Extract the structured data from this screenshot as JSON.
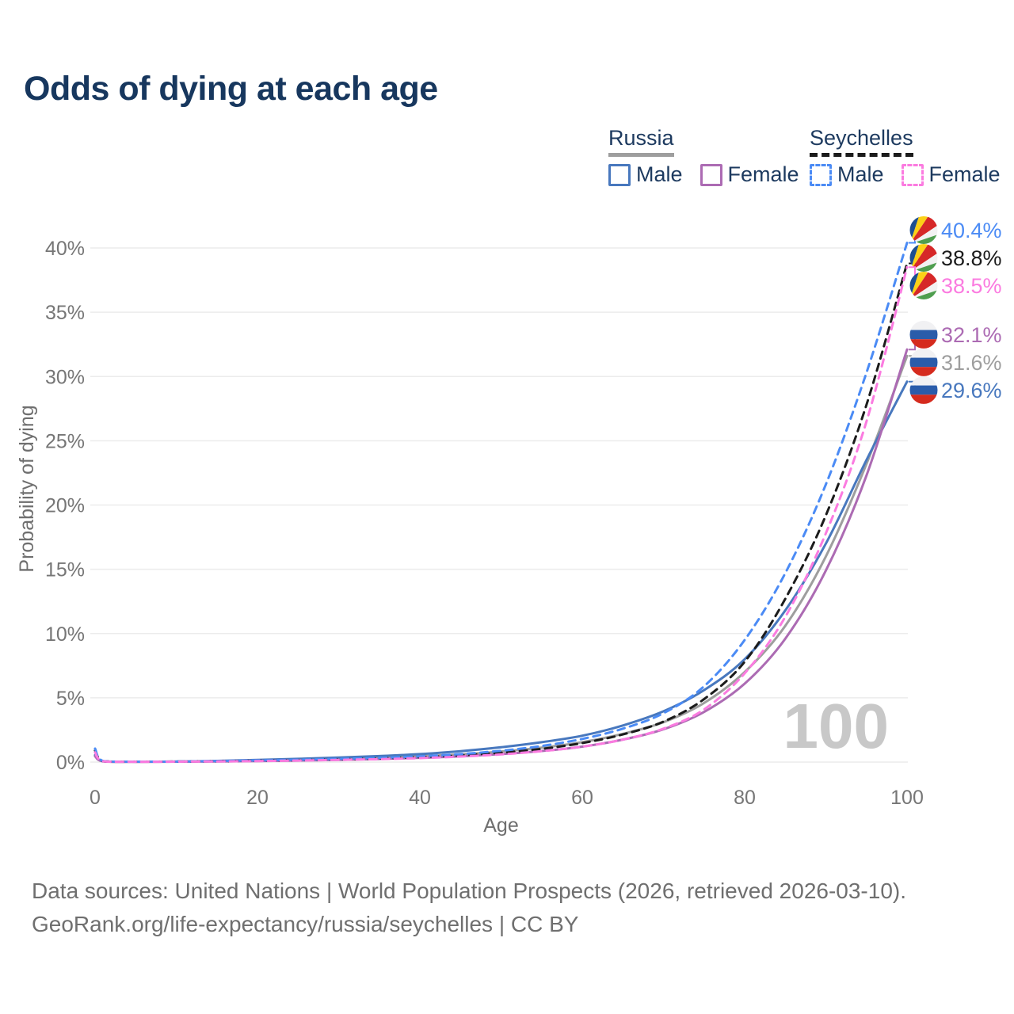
{
  "title": "Odds of dying at each age",
  "legend": {
    "groups": [
      {
        "country": "Russia",
        "line_style": "solid",
        "underline_color": "#9e9e9e",
        "items": [
          {
            "label": "Male",
            "color": "#4878be",
            "dashed": false
          },
          {
            "label": "Female",
            "color": "#ac6bb3",
            "dashed": false
          }
        ]
      },
      {
        "country": "Seychelles",
        "line_style": "dashed",
        "underline_color": "#1c1c1c",
        "items": [
          {
            "label": "Male",
            "color": "#4b8bf5",
            "dashed": true
          },
          {
            "label": "Female",
            "color": "#fb7be0",
            "dashed": true
          }
        ]
      }
    ]
  },
  "chart_data": {
    "type": "line",
    "title": "Odds of dying at each age",
    "xlabel": "Age",
    "ylabel": "Probability of dying",
    "xlim": [
      0,
      100
    ],
    "ylim": [
      0,
      40
    ],
    "x_ticks": [
      0,
      20,
      40,
      60,
      80,
      100
    ],
    "y_ticks": [
      {
        "value": 0,
        "label": "0%"
      },
      {
        "value": 5,
        "label": "5%"
      },
      {
        "value": 10,
        "label": "10%"
      },
      {
        "value": 15,
        "label": "15%"
      },
      {
        "value": 20,
        "label": "20%"
      },
      {
        "value": 25,
        "label": "25%"
      },
      {
        "value": 30,
        "label": "30%"
      },
      {
        "value": 35,
        "label": "35%"
      },
      {
        "value": 40,
        "label": "40%"
      }
    ],
    "grid": "horizontal",
    "watermark": "100",
    "ages": [
      0,
      1,
      5,
      10,
      15,
      20,
      25,
      30,
      35,
      40,
      45,
      50,
      55,
      60,
      65,
      70,
      75,
      80,
      85,
      90,
      95,
      100
    ],
    "series": [
      {
        "name": "Russia Total",
        "country": "Russia",
        "sex": "total",
        "flag": "russia",
        "color": "#9e9e9e",
        "dashed": false,
        "end_label": "31.6%",
        "values": [
          0.5,
          0.06,
          0.025,
          0.035,
          0.07,
          0.12,
          0.18,
          0.25,
          0.34,
          0.45,
          0.6,
          0.82,
          1.12,
          1.55,
          2.2,
          3.1,
          4.6,
          7.0,
          10.6,
          16.0,
          23.2,
          31.6
        ]
      },
      {
        "name": "Russia Male",
        "country": "Russia",
        "sex": "male",
        "flag": "russia",
        "color": "#4878be",
        "dashed": false,
        "end_label": "29.6%",
        "values": [
          0.55,
          0.07,
          0.03,
          0.04,
          0.09,
          0.17,
          0.25,
          0.35,
          0.47,
          0.62,
          0.85,
          1.15,
          1.55,
          2.05,
          2.85,
          3.95,
          5.6,
          8.0,
          11.8,
          17.0,
          23.5,
          29.6
        ]
      },
      {
        "name": "Russia Female",
        "country": "Russia",
        "sex": "female",
        "flag": "russia",
        "color": "#ac6bb3",
        "dashed": false,
        "end_label": "32.1%",
        "values": [
          0.45,
          0.05,
          0.02,
          0.03,
          0.05,
          0.08,
          0.12,
          0.17,
          0.24,
          0.33,
          0.45,
          0.62,
          0.86,
          1.2,
          1.75,
          2.55,
          3.9,
          6.1,
          9.6,
          14.9,
          22.3,
          32.1
        ]
      },
      {
        "name": "Seychelles Total",
        "country": "Seychelles",
        "sex": "total",
        "flag": "seychelles",
        "color": "#1c1c1c",
        "dashed": true,
        "end_label": "38.8%",
        "values": [
          0.9,
          0.07,
          0.03,
          0.035,
          0.07,
          0.11,
          0.15,
          0.21,
          0.28,
          0.38,
          0.52,
          0.73,
          1.03,
          1.48,
          2.15,
          3.15,
          4.9,
          7.8,
          12.7,
          19.2,
          27.8,
          38.8
        ]
      },
      {
        "name": "Seychelles Male",
        "country": "Seychelles",
        "sex": "male",
        "flag": "seychelles",
        "color": "#4b8bf5",
        "dashed": true,
        "end_label": "40.4%",
        "values": [
          1.05,
          0.08,
          0.03,
          0.04,
          0.08,
          0.13,
          0.18,
          0.25,
          0.33,
          0.45,
          0.62,
          0.88,
          1.25,
          1.8,
          2.6,
          3.8,
          5.9,
          9.5,
          14.7,
          21.6,
          30.3,
          40.4
        ]
      },
      {
        "name": "Seychelles Female",
        "country": "Seychelles",
        "sex": "female",
        "flag": "seychelles",
        "color": "#fb7be0",
        "dashed": true,
        "end_label": "38.5%",
        "values": [
          0.75,
          0.06,
          0.025,
          0.03,
          0.05,
          0.08,
          0.12,
          0.17,
          0.23,
          0.31,
          0.43,
          0.6,
          0.85,
          1.2,
          1.75,
          2.6,
          4.1,
          6.9,
          11.3,
          17.8,
          26.5,
          38.5
        ]
      }
    ],
    "flag_colors": {
      "russia": {
        "white": "#f1f1f3",
        "blue": "#2a5caa",
        "red": "#d52b1e"
      },
      "seychelles": {
        "blue": "#1d4f91",
        "yellow": "#fcd116",
        "red": "#d62828",
        "white": "#f2f2f2",
        "green": "#4f9e4f"
      }
    },
    "colors": {
      "grid": "#ececec",
      "tick_text": "#767676",
      "axis_label": "#6f6f6f",
      "watermark": "#c8c8c8"
    }
  },
  "footer": {
    "line1": "Data sources: United Nations | World Population Prospects (2026, retrieved 2026-03-10).",
    "line2": "GeoRank.org/life-expectancy/russia/seychelles | CC BY"
  }
}
